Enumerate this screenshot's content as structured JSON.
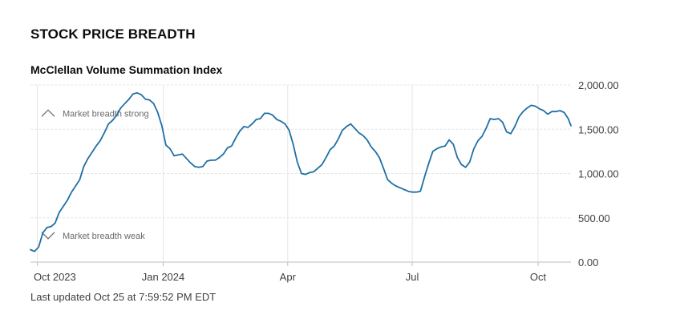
{
  "section_title": "STOCK PRICE BREADTH",
  "chart_title": "McClellan Volume Summation Index",
  "last_updated": "Last updated Oct 25 at 7:59:52 PM EDT",
  "colors": {
    "line": "#1f6fa5",
    "grid": "#e6e6e6",
    "axis": "#bdbdbd",
    "text": "#404040",
    "annotation": "#6a6a6a"
  },
  "chart_data": {
    "type": "line",
    "title": "McClellan Volume Summation Index",
    "xlabel": "",
    "ylabel": "",
    "ylim": [
      0,
      2000
    ],
    "grid": true,
    "y_ticks": [
      {
        "value": 0,
        "label": "0.00"
      },
      {
        "value": 500,
        "label": "500.00"
      },
      {
        "value": 1000,
        "label": "1,000.00"
      },
      {
        "value": 1500,
        "label": "1,500.00"
      },
      {
        "value": 2000,
        "label": "2,000.00"
      }
    ],
    "x_range": [
      "2023-09-26",
      "2024-10-25"
    ],
    "x_ticks": [
      {
        "date": "2023-10-01",
        "label": "Oct 2023"
      },
      {
        "date": "2024-01-01",
        "label": "Jan 2024"
      },
      {
        "date": "2024-04-01",
        "label": "Apr"
      },
      {
        "date": "2024-07-01",
        "label": "Jul"
      },
      {
        "date": "2024-10-01",
        "label": "Oct"
      }
    ],
    "annotations": [
      {
        "label": "Market breadth strong",
        "value": 1680,
        "date": "2023-10-14",
        "symbol": "up"
      },
      {
        "label": "Market breadth weak",
        "value": 300,
        "date": "2023-10-14",
        "symbol": "down"
      }
    ],
    "series": [
      {
        "points": [
          [
            "2023-09-26",
            140
          ],
          [
            "2023-09-29",
            120
          ],
          [
            "2023-10-02",
            170
          ],
          [
            "2023-10-05",
            330
          ],
          [
            "2023-10-08",
            390
          ],
          [
            "2023-10-11",
            400
          ],
          [
            "2023-10-14",
            440
          ],
          [
            "2023-10-17",
            560
          ],
          [
            "2023-10-20",
            630
          ],
          [
            "2023-10-23",
            700
          ],
          [
            "2023-10-26",
            790
          ],
          [
            "2023-10-29",
            860
          ],
          [
            "2023-11-01",
            930
          ],
          [
            "2023-11-04",
            1080
          ],
          [
            "2023-11-07",
            1170
          ],
          [
            "2023-11-10",
            1240
          ],
          [
            "2023-11-13",
            1310
          ],
          [
            "2023-11-16",
            1370
          ],
          [
            "2023-11-19",
            1460
          ],
          [
            "2023-11-22",
            1560
          ],
          [
            "2023-11-25",
            1600
          ],
          [
            "2023-11-28",
            1660
          ],
          [
            "2023-12-01",
            1740
          ],
          [
            "2023-12-04",
            1790
          ],
          [
            "2023-12-07",
            1840
          ],
          [
            "2023-12-10",
            1900
          ],
          [
            "2023-12-13",
            1910
          ],
          [
            "2023-12-16",
            1890
          ],
          [
            "2023-12-19",
            1840
          ],
          [
            "2023-12-22",
            1830
          ],
          [
            "2023-12-25",
            1790
          ],
          [
            "2023-12-28",
            1690
          ],
          [
            "2023-12-31",
            1540
          ],
          [
            "2024-01-03",
            1320
          ],
          [
            "2024-01-06",
            1280
          ],
          [
            "2024-01-09",
            1200
          ],
          [
            "2024-01-12",
            1210
          ],
          [
            "2024-01-15",
            1220
          ],
          [
            "2024-01-18",
            1170
          ],
          [
            "2024-01-21",
            1120
          ],
          [
            "2024-01-24",
            1080
          ],
          [
            "2024-01-27",
            1070
          ],
          [
            "2024-01-30",
            1080
          ],
          [
            "2024-02-02",
            1140
          ],
          [
            "2024-02-05",
            1150
          ],
          [
            "2024-02-08",
            1150
          ],
          [
            "2024-02-11",
            1180
          ],
          [
            "2024-02-14",
            1220
          ],
          [
            "2024-02-17",
            1290
          ],
          [
            "2024-02-20",
            1310
          ],
          [
            "2024-02-23",
            1400
          ],
          [
            "2024-02-26",
            1480
          ],
          [
            "2024-02-29",
            1530
          ],
          [
            "2024-03-03",
            1520
          ],
          [
            "2024-03-06",
            1560
          ],
          [
            "2024-03-09",
            1610
          ],
          [
            "2024-03-12",
            1620
          ],
          [
            "2024-03-15",
            1680
          ],
          [
            "2024-03-18",
            1680
          ],
          [
            "2024-03-21",
            1660
          ],
          [
            "2024-03-24",
            1610
          ],
          [
            "2024-03-27",
            1590
          ],
          [
            "2024-03-30",
            1560
          ],
          [
            "2024-04-02",
            1490
          ],
          [
            "2024-04-05",
            1330
          ],
          [
            "2024-04-08",
            1130
          ],
          [
            "2024-04-11",
            1000
          ],
          [
            "2024-04-14",
            990
          ],
          [
            "2024-04-17",
            1010
          ],
          [
            "2024-04-20",
            1020
          ],
          [
            "2024-04-23",
            1060
          ],
          [
            "2024-04-26",
            1100
          ],
          [
            "2024-04-29",
            1180
          ],
          [
            "2024-05-02",
            1270
          ],
          [
            "2024-05-05",
            1310
          ],
          [
            "2024-05-08",
            1390
          ],
          [
            "2024-05-11",
            1490
          ],
          [
            "2024-05-14",
            1530
          ],
          [
            "2024-05-17",
            1560
          ],
          [
            "2024-05-20",
            1510
          ],
          [
            "2024-05-23",
            1460
          ],
          [
            "2024-05-26",
            1430
          ],
          [
            "2024-05-29",
            1380
          ],
          [
            "2024-06-01",
            1300
          ],
          [
            "2024-06-04",
            1250
          ],
          [
            "2024-06-07",
            1180
          ],
          [
            "2024-06-10",
            1060
          ],
          [
            "2024-06-13",
            930
          ],
          [
            "2024-06-16",
            890
          ],
          [
            "2024-06-19",
            860
          ],
          [
            "2024-06-22",
            840
          ],
          [
            "2024-06-25",
            820
          ],
          [
            "2024-06-28",
            800
          ],
          [
            "2024-07-01",
            790
          ],
          [
            "2024-07-04",
            790
          ],
          [
            "2024-07-07",
            800
          ],
          [
            "2024-07-10",
            960
          ],
          [
            "2024-07-13",
            1110
          ],
          [
            "2024-07-16",
            1250
          ],
          [
            "2024-07-19",
            1280
          ],
          [
            "2024-07-22",
            1300
          ],
          [
            "2024-07-25",
            1310
          ],
          [
            "2024-07-28",
            1380
          ],
          [
            "2024-07-31",
            1330
          ],
          [
            "2024-08-03",
            1180
          ],
          [
            "2024-08-06",
            1100
          ],
          [
            "2024-08-09",
            1070
          ],
          [
            "2024-08-12",
            1130
          ],
          [
            "2024-08-15",
            1280
          ],
          [
            "2024-08-18",
            1370
          ],
          [
            "2024-08-21",
            1420
          ],
          [
            "2024-08-24",
            1510
          ],
          [
            "2024-08-27",
            1620
          ],
          [
            "2024-08-30",
            1610
          ],
          [
            "2024-09-02",
            1620
          ],
          [
            "2024-09-05",
            1580
          ],
          [
            "2024-09-08",
            1470
          ],
          [
            "2024-09-11",
            1450
          ],
          [
            "2024-09-14",
            1530
          ],
          [
            "2024-09-17",
            1640
          ],
          [
            "2024-09-20",
            1700
          ],
          [
            "2024-09-23",
            1740
          ],
          [
            "2024-09-26",
            1770
          ],
          [
            "2024-09-29",
            1760
          ],
          [
            "2024-10-02",
            1730
          ],
          [
            "2024-10-05",
            1710
          ],
          [
            "2024-10-08",
            1670
          ],
          [
            "2024-10-11",
            1700
          ],
          [
            "2024-10-14",
            1700
          ],
          [
            "2024-10-17",
            1710
          ],
          [
            "2024-10-20",
            1690
          ],
          [
            "2024-10-23",
            1620
          ],
          [
            "2024-10-25",
            1540
          ]
        ]
      }
    ]
  }
}
